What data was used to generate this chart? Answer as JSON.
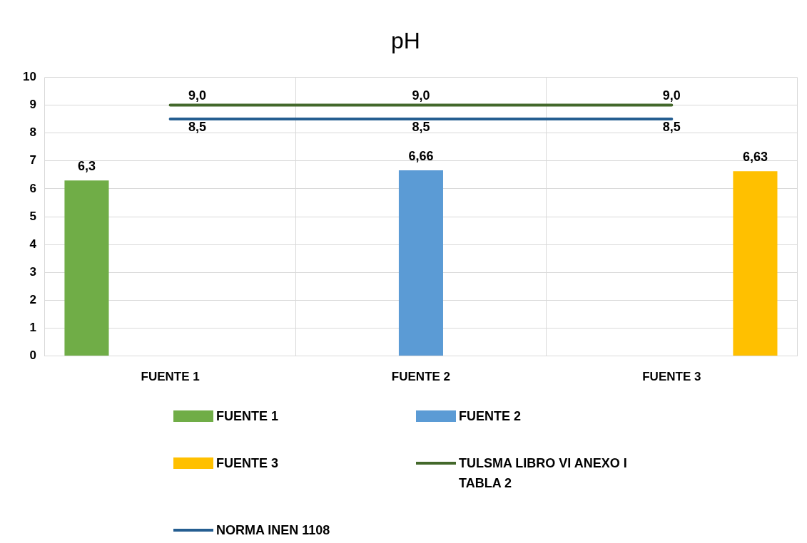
{
  "chart_data": {
    "type": "bar",
    "title": "pH",
    "categories": [
      "FUENTE 1",
      "FUENTE 2",
      "FUENTE 3"
    ],
    "series": [
      {
        "name": "FUENTE 1",
        "color": "#70ad47",
        "values": [
          6.3,
          null,
          null
        ],
        "value_labels": [
          "6,3",
          null,
          null
        ]
      },
      {
        "name": "FUENTE 2",
        "color": "#5b9bd5",
        "values": [
          null,
          6.66,
          null
        ],
        "value_labels": [
          null,
          "6,66",
          null
        ]
      },
      {
        "name": "FUENTE 3",
        "color": "#ffc000",
        "values": [
          null,
          null,
          6.63
        ],
        "value_labels": [
          null,
          null,
          "6,63"
        ]
      },
      {
        "name": "TULSMA LIBRO VI ANEXO I TABLA 2",
        "type": "line",
        "color": "#43682b",
        "values": [
          9,
          9,
          9
        ],
        "value_labels": [
          "9,0",
          "9,0",
          "9,0"
        ]
      },
      {
        "name": "NORMA INEN 1108",
        "type": "line",
        "color": "#255e91",
        "values": [
          8.5,
          8.5,
          8.5
        ],
        "value_labels": [
          "8,5",
          "8,5",
          "8,5"
        ]
      }
    ],
    "ylim": [
      0,
      10
    ],
    "yticks": [
      0,
      1,
      2,
      3,
      4,
      5,
      6,
      7,
      8,
      9,
      10
    ],
    "grid": true,
    "legend": "bottom",
    "marker": "none",
    "line_style": "solid"
  }
}
